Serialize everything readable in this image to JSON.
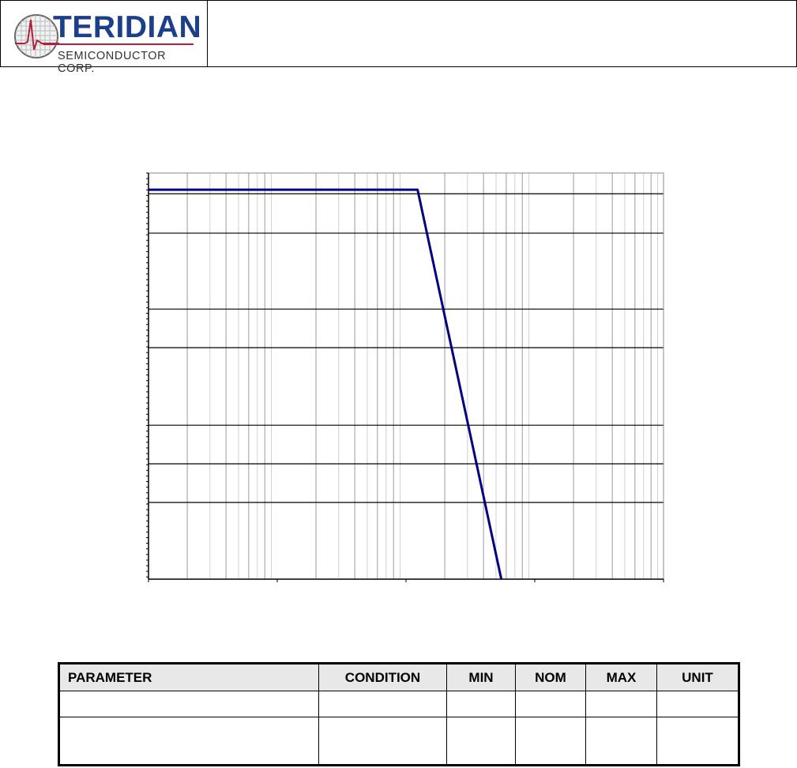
{
  "header": {
    "logo": {
      "name": "TERIDIAN",
      "subtitle": "SEMICONDUCTOR CORP."
    },
    "colors": {
      "logo_blue": "#1b3f8b",
      "logo_red": "#b0203a"
    }
  },
  "chart_data": {
    "type": "line",
    "xscale": "log",
    "xlim": [
      1,
      10000
    ],
    "ylim": [
      0,
      100
    ],
    "grid": true,
    "y_gridlines": [
      94.9,
      85.2,
      66.5,
      57.0,
      37.9,
      28.4,
      18.9
    ],
    "title": "",
    "xlabel": "",
    "ylabel": "",
    "series": [
      {
        "x": [
          1,
          123,
          550
        ],
        "y": [
          95.9,
          95.9,
          0
        ],
        "color": "#000080"
      }
    ]
  },
  "table": {
    "headers": [
      "PARAMETER",
      "CONDITION",
      "MIN",
      "NOM",
      "MAX",
      "UNIT"
    ],
    "rows": [
      [
        "",
        "",
        "",
        "",
        "",
        ""
      ],
      [
        "",
        "",
        "",
        "",
        "",
        ""
      ]
    ]
  }
}
